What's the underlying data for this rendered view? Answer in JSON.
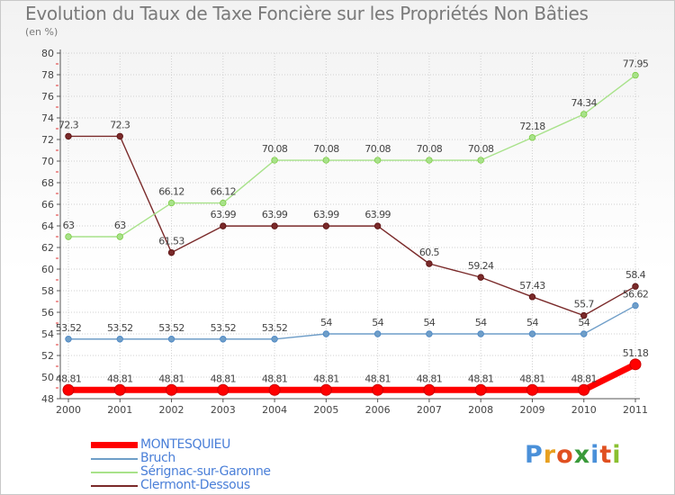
{
  "chart_data": {
    "type": "line",
    "title": "Evolution du Taux de Taxe Foncière sur les Propriétés Non Bâties",
    "subtitle": "(en %)",
    "x": [
      "2000",
      "2001",
      "2002",
      "2003",
      "2004",
      "2005",
      "2006",
      "2007",
      "2008",
      "2009",
      "2010",
      "2011"
    ],
    "ylim": [
      48,
      80
    ],
    "yticks": [
      "48",
      "50",
      "52",
      "54",
      "56",
      "58",
      "60",
      "62",
      "64",
      "66",
      "68",
      "70",
      "72",
      "74",
      "76",
      "78",
      "80"
    ],
    "grid": true,
    "legend_position": "bottom-left",
    "series": [
      {
        "name": "MONTESQUIEU",
        "color": "#ff0000",
        "marker_color": "#cc0000",
        "values": [
          48.81,
          48.81,
          48.81,
          48.81,
          48.81,
          48.81,
          48.81,
          48.81,
          48.81,
          48.81,
          48.81,
          51.18
        ],
        "labels": [
          "48.81",
          "48.81",
          "48.81",
          "48.81",
          "48.81",
          "48.81",
          "48.81",
          "48.81",
          "48.81",
          "48.81",
          "48.81",
          "51.18"
        ]
      },
      {
        "name": "Bruch",
        "color": "#6f9ec8",
        "marker_color": "#4a86c5",
        "values": [
          53.52,
          53.52,
          53.52,
          53.52,
          53.52,
          54,
          54,
          54,
          54,
          54,
          54,
          56.62
        ],
        "labels": [
          "53.52",
          "53.52",
          "53.52",
          "53.52",
          "53.52",
          "54",
          "54",
          "54",
          "54",
          "54",
          "54",
          "56.62"
        ]
      },
      {
        "name": "Sérignac-sur-Garonne",
        "color": "#a8e28a",
        "marker_color": "#7dcc44",
        "values": [
          63,
          63,
          66.12,
          66.12,
          70.08,
          70.08,
          70.08,
          70.08,
          70.08,
          72.18,
          74.34,
          77.95
        ],
        "labels": [
          "63",
          "63",
          "66.12",
          "66.12",
          "70.08",
          "70.08",
          "70.08",
          "70.08",
          "70.08",
          "72.18",
          "74.34",
          "77.95"
        ]
      },
      {
        "name": "Clermont-Dessous",
        "color": "#7a2a2a",
        "marker_color": "#5a1010",
        "values": [
          72.3,
          72.3,
          61.53,
          63.99,
          63.99,
          63.99,
          63.99,
          60.5,
          59.24,
          57.43,
          55.7,
          58.4
        ],
        "labels": [
          "72.3",
          "72.3",
          "61.53",
          "63.99",
          "63.99",
          "63.99",
          "63.99",
          "60.5",
          "59.24",
          "57.43",
          "55.7",
          "58.4"
        ]
      }
    ]
  },
  "logo": {
    "text": "Proxiti",
    "letters": [
      "P",
      "r",
      "o",
      "x",
      "i",
      "t",
      "i"
    ],
    "colors": [
      "#4a90d9",
      "#e8a020",
      "#e05020",
      "#3a9a3a",
      "#4a90d9",
      "#e05020",
      "#8ac030"
    ]
  }
}
